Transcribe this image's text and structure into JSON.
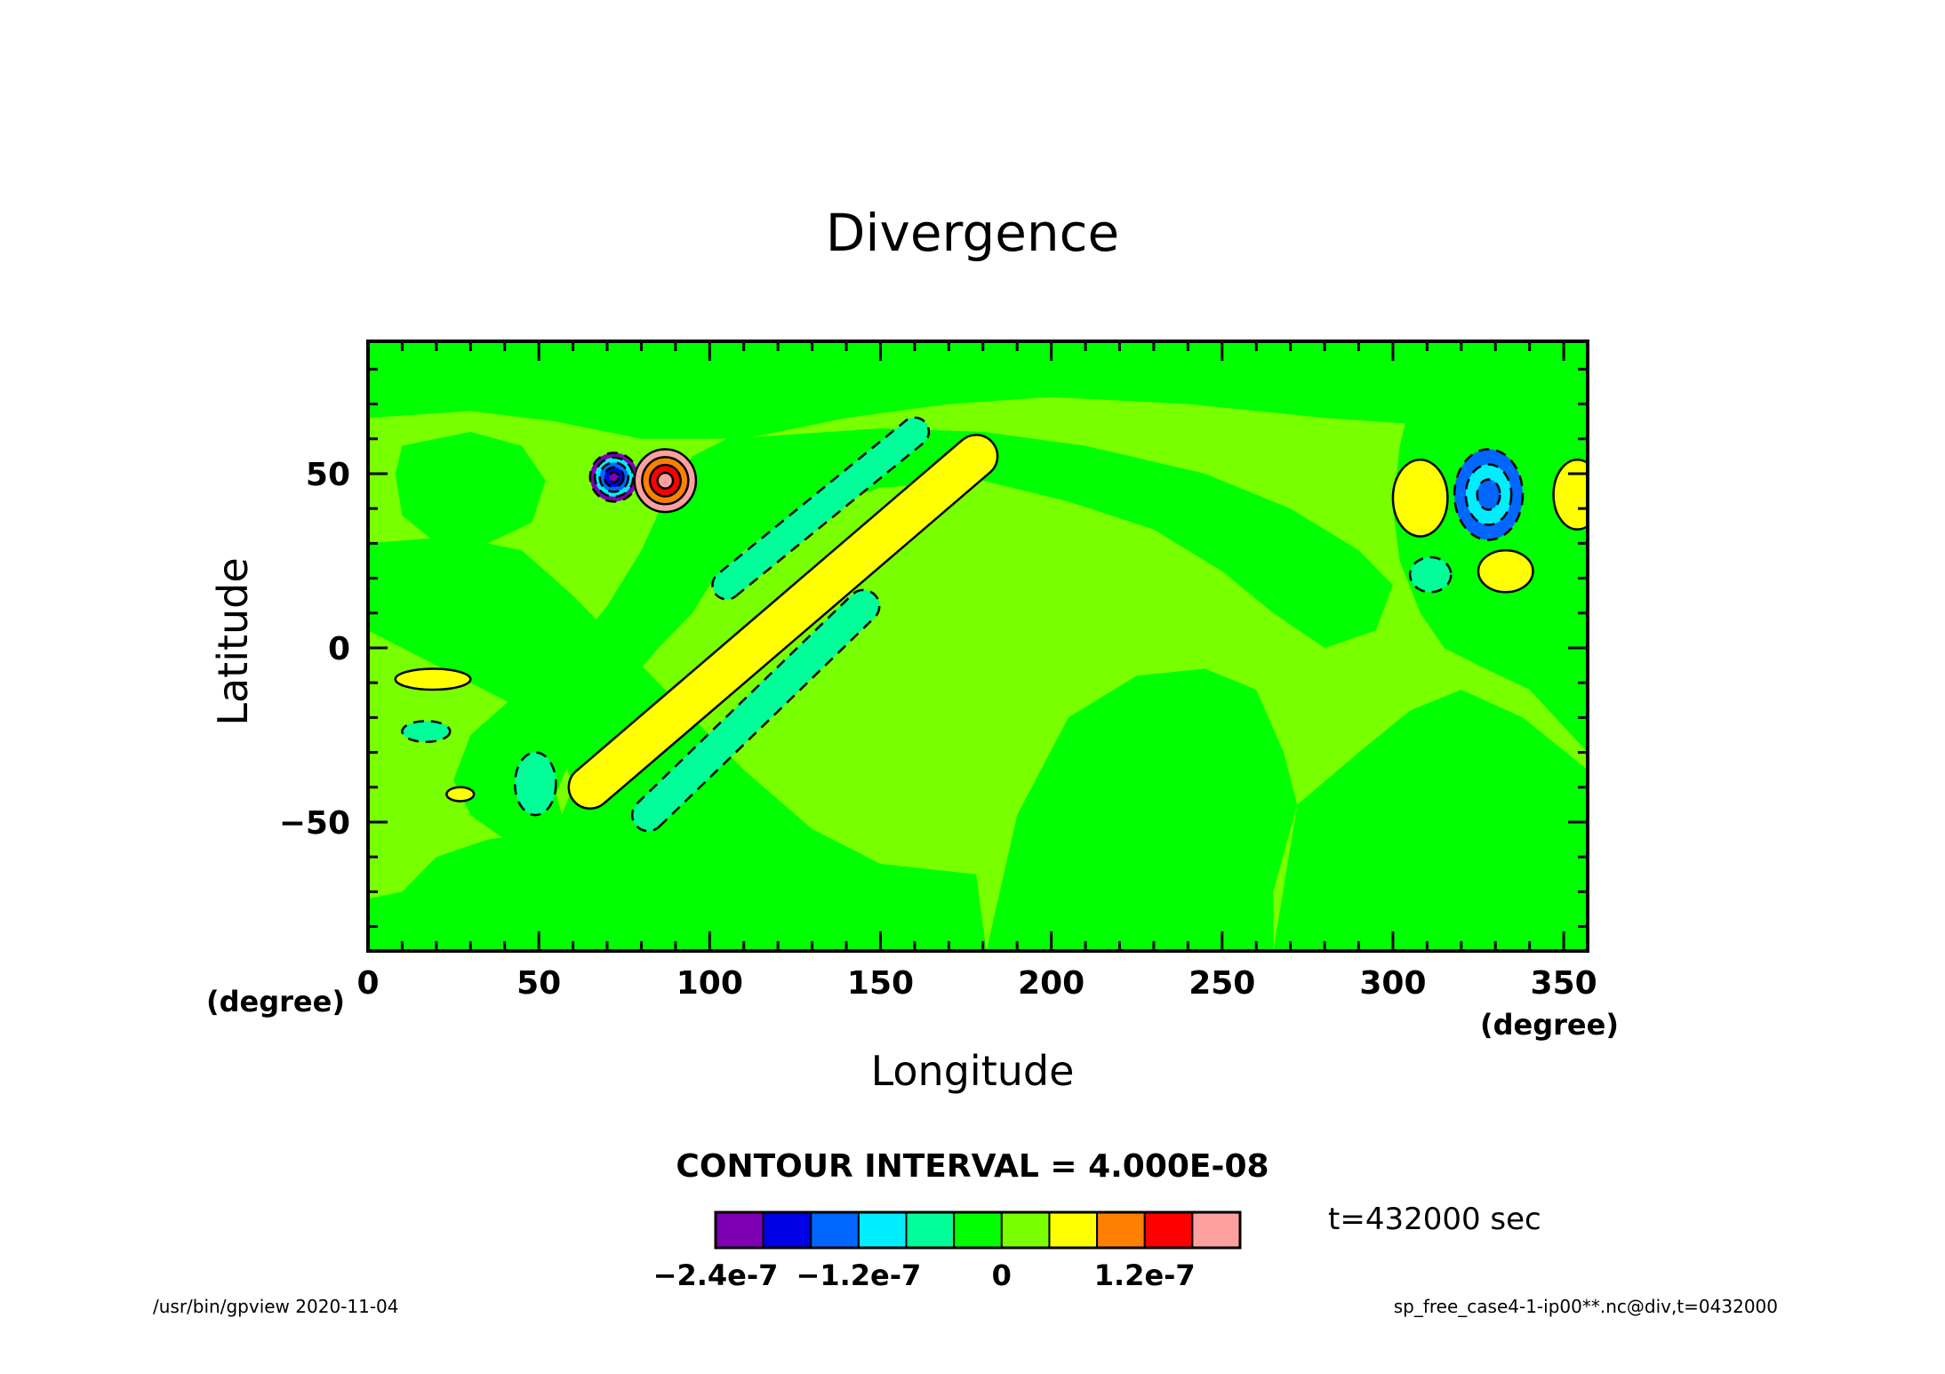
{
  "chart_data": {
    "type": "heatmap",
    "title": "Divergence",
    "xlabel": "Longitude",
    "ylabel": "Latitude",
    "x_unit": "(degree)",
    "y_unit": "(degree)",
    "xlim": [
      0,
      357
    ],
    "ylim": [
      -87,
      88
    ],
    "x_ticks": [
      0,
      50,
      100,
      150,
      200,
      250,
      300,
      350
    ],
    "y_ticks": [
      -50,
      0,
      50
    ],
    "contour_interval_label": "CONTOUR INTERVAL = 4.000E-08",
    "time_label": "t=432000 sec",
    "colorbar": {
      "colors": [
        "#7f00b4",
        "#0000e6",
        "#0066ff",
        "#00eeff",
        "#00ff99",
        "#00ff00",
        "#78ff00",
        "#ffff00",
        "#ff7f00",
        "#ff0000",
        "#ffa0a0"
      ],
      "boundaries": [
        -2.4e-07,
        -2e-07,
        -1.6e-07,
        -1.2e-07,
        -8e-08,
        -4e-08,
        0,
        4e-08,
        8e-08,
        1.2e-07,
        1.6e-07,
        2e-07
      ],
      "tick_labels": [
        {
          "value": -2.4e-07,
          "label": "−2.4e-7"
        },
        {
          "value": -1.2e-07,
          "label": "−1.2e-7"
        },
        {
          "value": 0,
          "label": "0"
        },
        {
          "value": 1.2e-07,
          "label": "1.2e-7"
        }
      ]
    },
    "features": [
      {
        "kind": "negative",
        "level": -2e-07,
        "lon": 72,
        "lat": 49,
        "rx": 7,
        "ry": 7
      },
      {
        "kind": "positive",
        "level": 1.6e-07,
        "lon": 87,
        "lat": 48,
        "rx": 9,
        "ry": 9
      },
      {
        "kind": "positive",
        "level": 4e-08,
        "lon": 120,
        "lat": 13,
        "note": "diagonal band from (65,-40) to (178,55)"
      },
      {
        "kind": "negative",
        "level": -4e-08,
        "lon": 108,
        "lat": -25,
        "note": "diagonal band from (82,-48) to (145,12)"
      },
      {
        "kind": "negative",
        "level": -4e-08,
        "lon": 126,
        "lat": 39,
        "note": "diagonal band from (105,18) to (160,62)"
      },
      {
        "kind": "negative",
        "level": -1.2e-07,
        "lon": 328,
        "lat": 44,
        "rx": 10,
        "ry": 13
      },
      {
        "kind": "positive",
        "level": 4e-08,
        "lon": 308,
        "lat": 43,
        "rx": 8,
        "ry": 11
      },
      {
        "kind": "positive",
        "level": 4e-08,
        "lon": 354,
        "lat": 44,
        "rx": 7,
        "ry": 10
      },
      {
        "kind": "positive",
        "level": 4e-08,
        "lon": 333,
        "lat": 22,
        "rx": 8,
        "ry": 6
      },
      {
        "kind": "negative",
        "level": -4e-08,
        "lon": 311,
        "lat": 21,
        "rx": 6,
        "ry": 5
      },
      {
        "kind": "positive",
        "level": 4e-08,
        "lon": 19,
        "lat": -9,
        "rx": 11,
        "ry": 3
      },
      {
        "kind": "negative",
        "level": -4e-08,
        "lon": 17,
        "lat": -24,
        "rx": 7,
        "ry": 3
      },
      {
        "kind": "positive",
        "level": 4e-08,
        "lon": 27,
        "lat": -42,
        "rx": 4,
        "ry": 2
      },
      {
        "kind": "negative",
        "level": -4e-08,
        "lon": 49,
        "lat": -39,
        "rx": 6,
        "ry": 9
      }
    ]
  },
  "footer": {
    "left": "/usr/bin/gpview   2020-11-04",
    "right": "sp_free_case4-1-ip00**.nc@div,t=0432000"
  }
}
